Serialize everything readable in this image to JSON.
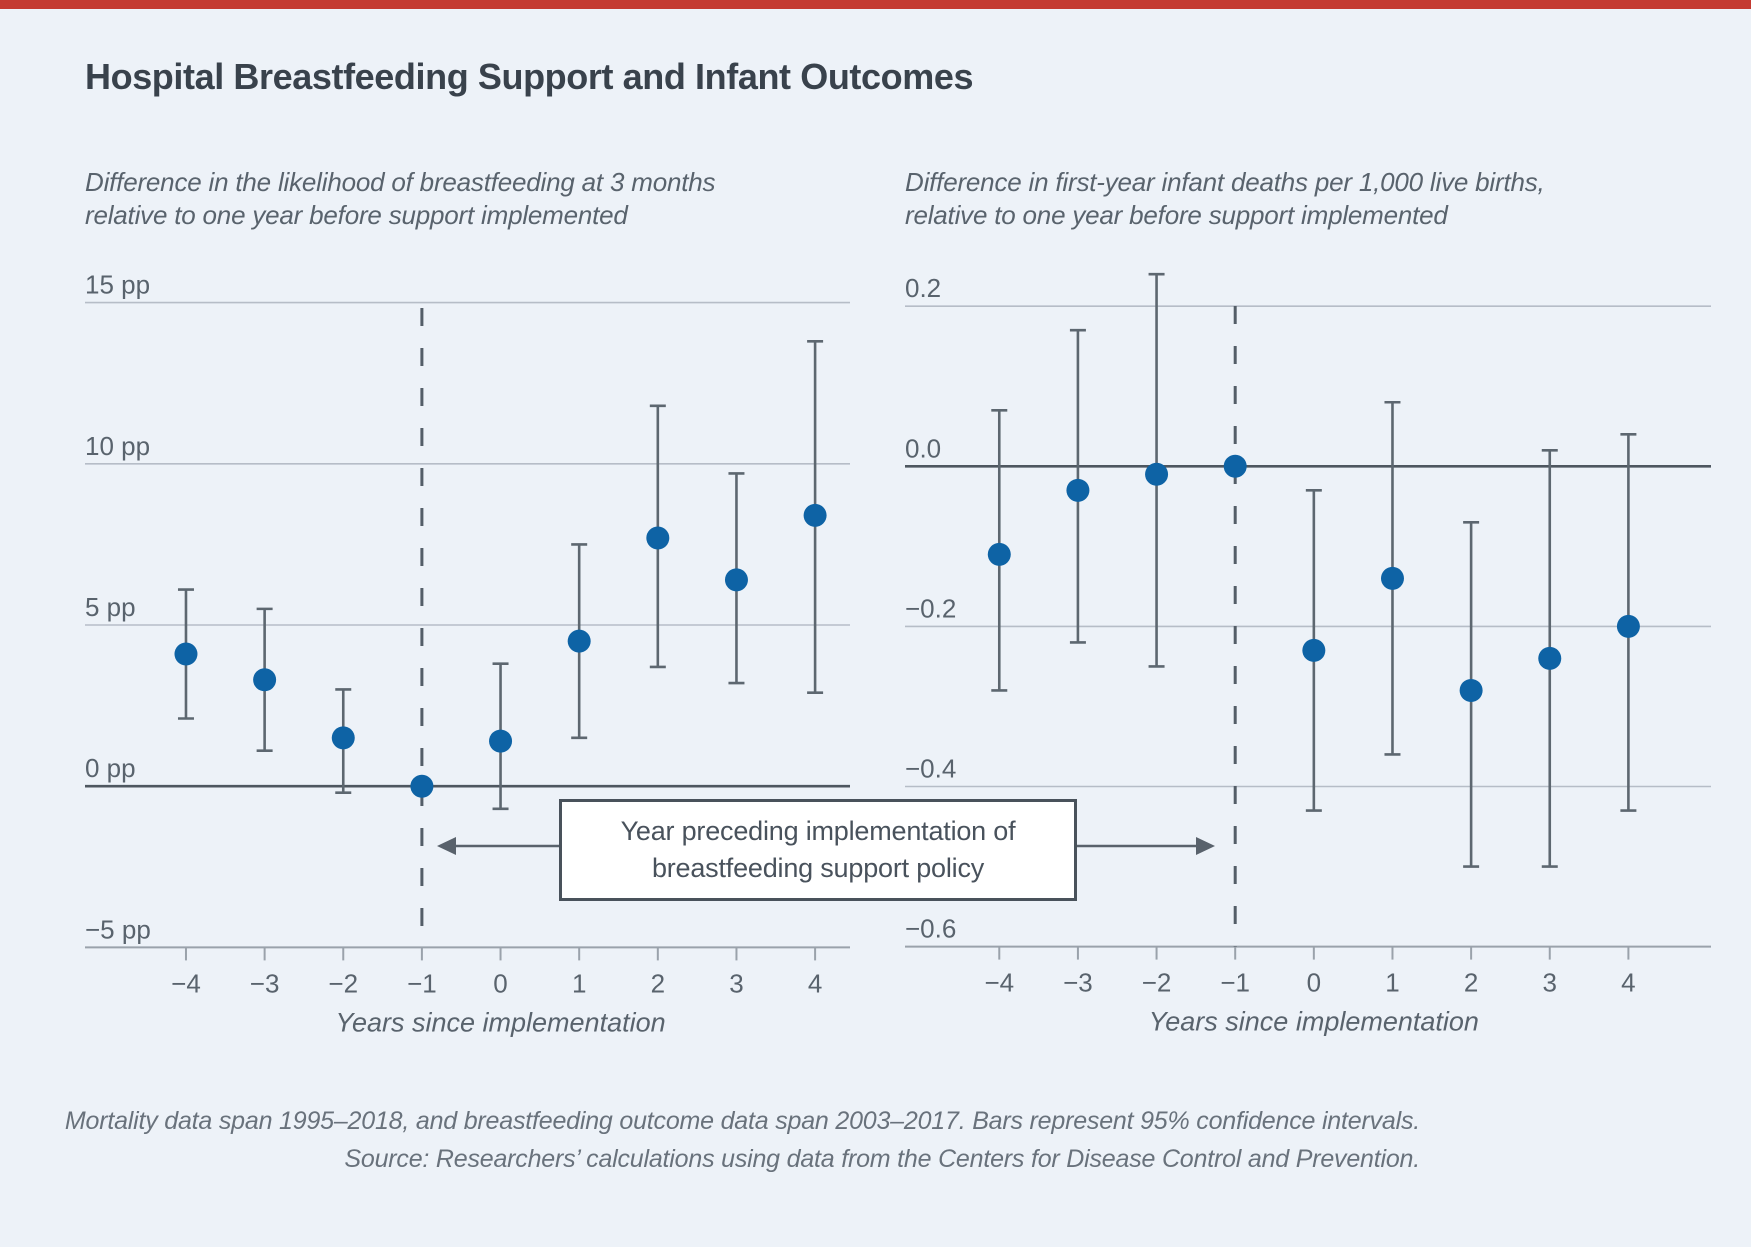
{
  "page": {
    "background": "#edf2f8",
    "top_bar_color": "#c43a31"
  },
  "title": "Hospital Breastfeeding Support and Infant Outcomes",
  "annotation": {
    "line1": "Year preceding implementation of",
    "line2": "breastfeeding support policy"
  },
  "footer": {
    "line1": "Mortality data span 1995–2018, and breastfeeding outcome data span 2003–2017. Bars represent 95% confidence intervals.",
    "line2": "Source: Researchers’ calculations using data from the Centers for Disease Control and Prevention."
  },
  "colors": {
    "dot": "#0e63a5",
    "whisker": "#5d6770",
    "gridline": "#b6bdc7",
    "zero_line": "#4e5760",
    "axis_line": "#9aa2ab",
    "dashed_line": "#545e68",
    "arrow": "#59626c"
  },
  "chart_data": [
    {
      "type": "scatter",
      "panel": "left",
      "subtitle_line1": "Difference in the likelihood of breastfeeding at 3 months",
      "subtitle_line2": "relative to one year before support implemented",
      "xlabel": "Years since implementation",
      "x": [
        -4,
        -3,
        -2,
        -1,
        0,
        1,
        2,
        3,
        4
      ],
      "x_tick_labels": [
        "−4",
        "−3",
        "−2",
        "−1",
        "0",
        "1",
        "2",
        "3",
        "4"
      ],
      "values": [
        4.1,
        3.3,
        1.5,
        0,
        1.4,
        4.5,
        7.7,
        6.4,
        8.4
      ],
      "ci_low": [
        2.1,
        1.1,
        -0.2,
        null,
        -0.7,
        1.5,
        3.7,
        3.2,
        2.9
      ],
      "ci_high": [
        6.1,
        5.5,
        3.0,
        null,
        3.8,
        7.5,
        11.8,
        9.7,
        13.8
      ],
      "reference_x": -1,
      "y_ticks": [
        15,
        10,
        5,
        0,
        -5
      ],
      "y_tick_labels": [
        "15 pp",
        "10 pp",
        "5 pp",
        "0 pp",
        "−5 pp"
      ],
      "ylim": [
        -5,
        15
      ],
      "zero_line_at": 0,
      "grid": true,
      "legend": "none"
    },
    {
      "type": "scatter",
      "panel": "right",
      "subtitle_line1": "Difference in first-year infant deaths per 1,000 live births,",
      "subtitle_line2": "relative to one year before support implemented",
      "xlabel": "Years since implementation",
      "x": [
        -4,
        -3,
        -2,
        -1,
        0,
        1,
        2,
        3,
        4
      ],
      "x_tick_labels": [
        "−4",
        "−3",
        "−2",
        "−1",
        "0",
        "1",
        "2",
        "3",
        "4"
      ],
      "values": [
        -0.11,
        -0.03,
        -0.01,
        0,
        -0.23,
        -0.14,
        -0.28,
        -0.24,
        -0.2
      ],
      "ci_low": [
        -0.28,
        -0.22,
        -0.25,
        null,
        -0.43,
        -0.36,
        -0.5,
        -0.5,
        -0.43
      ],
      "ci_high": [
        0.07,
        0.17,
        0.24,
        null,
        -0.03,
        0.08,
        -0.07,
        0.02,
        0.04
      ],
      "reference_x": -1,
      "y_ticks": [
        0.2,
        0.0,
        -0.2,
        -0.4,
        -0.6
      ],
      "y_tick_labels": [
        "0.2",
        "0.0",
        "−0.2",
        "−0.4",
        "−0.6"
      ],
      "ylim": [
        -0.6,
        0.2
      ],
      "zero_line_at": 0,
      "grid": true,
      "legend": "none"
    }
  ]
}
